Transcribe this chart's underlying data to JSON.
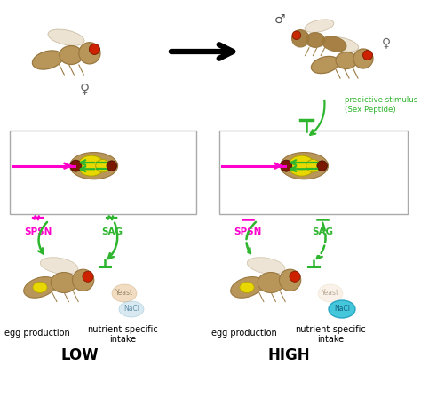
{
  "bg_color": "#ffffff",
  "green": "#2db52d",
  "green_dark": "#1a9a1a",
  "pink": "#ff00cc",
  "black": "#000000",
  "tan": "#b8965a",
  "tan_dark": "#9a7840",
  "wing": "#e8dcc8",
  "eye_red": "#cc2200",
  "yellow": "#e8d800",
  "cyan": "#30c0d8",
  "peach": "#e8c090",
  "gray_text": "#888888",
  "box_edge": "#aaaaaa",
  "dark_red": "#7a1800",
  "low_label": "LOW",
  "high_label": "HIGH",
  "egg_label": "egg production",
  "nutrient_label": "nutrient-specific\nintake",
  "spsn_label": "SPSN",
  "sag_label": "SAG",
  "predictive_label": "predictive stimulus\n(Sex Peptide)",
  "yeast_label": "Yeast",
  "nacl_label": "NaCl",
  "male_sym": "♂",
  "female_sym": "♀"
}
